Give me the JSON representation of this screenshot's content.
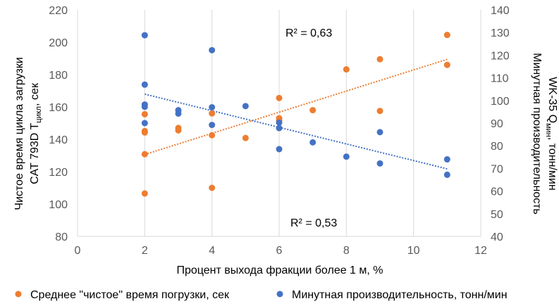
{
  "chart_data": {
    "type": "scatter",
    "xlabel": "Процент выхода фракции более 1 м, %",
    "ylabel_left": {
      "line1": "Чистое время цикла загрузки",
      "line2_prefix": "CAT 793D T",
      "line2_sub": "цикл",
      "line2_suffix": ", сек"
    },
    "ylabel_right": {
      "line1": "Минутная производительность",
      "line2_prefix": "WK-35 Q",
      "line2_sub": "мин",
      "line2_suffix": ", тонн/мин"
    },
    "xlim": [
      0,
      12
    ],
    "xticks": [
      0,
      2,
      4,
      6,
      8,
      10,
      12
    ],
    "ylim_left": [
      80,
      220
    ],
    "yticks_left": [
      80,
      100,
      120,
      140,
      160,
      180,
      200,
      220
    ],
    "ylim_right": [
      40,
      140
    ],
    "yticks_right": [
      40,
      50,
      60,
      70,
      80,
      90,
      100,
      110,
      120,
      130,
      140
    ],
    "grid": "vertical",
    "legend_position": "bottom",
    "series": [
      {
        "name": "Среднее \"чистое\" время погрузки, сек",
        "axis": "left",
        "color": "#ED7D31",
        "points": [
          [
            2,
            106.5
          ],
          [
            2,
            130.8
          ],
          [
            2,
            144.2
          ],
          [
            2,
            145.1
          ],
          [
            2,
            155.5
          ],
          [
            3,
            145.5
          ],
          [
            3,
            147
          ],
          [
            4,
            110
          ],
          [
            4,
            142.5
          ],
          [
            4,
            156
          ],
          [
            5,
            140.8
          ],
          [
            6,
            151.5
          ],
          [
            6,
            153
          ],
          [
            6,
            165.5
          ],
          [
            7,
            158
          ],
          [
            8,
            183.2
          ],
          [
            9,
            157.5
          ],
          [
            9,
            189.5
          ],
          [
            11,
            186
          ],
          [
            11,
            204.5
          ]
        ],
        "trendline": {
          "x": [
            2,
            11
          ],
          "y": [
            130.6,
            189.4
          ]
        }
      },
      {
        "name": "Минутная производительность, тонн/мин",
        "axis": "right",
        "color": "#4472C4",
        "points": [
          [
            2,
            128.8
          ],
          [
            2,
            107
          ],
          [
            2,
            98.2
          ],
          [
            2,
            97.2
          ],
          [
            2,
            90
          ],
          [
            3,
            95.7
          ],
          [
            3,
            94.2
          ],
          [
            4,
            122.2
          ],
          [
            4,
            97
          ],
          [
            4,
            89.2
          ],
          [
            5,
            97.5
          ],
          [
            6,
            90.2
          ],
          [
            6,
            87.8
          ],
          [
            6,
            78.5
          ],
          [
            7,
            81.5
          ],
          [
            8,
            75.2
          ],
          [
            9,
            86
          ],
          [
            9,
            72.2
          ],
          [
            11,
            74
          ],
          [
            11,
            67.2
          ]
        ],
        "trendline": {
          "x": [
            2,
            11
          ],
          "y": [
            102.8,
            69.8
          ]
        }
      }
    ],
    "annotations": [
      {
        "text": "R² = 0,63"
      },
      {
        "text": "R² = 0,53"
      }
    ]
  }
}
